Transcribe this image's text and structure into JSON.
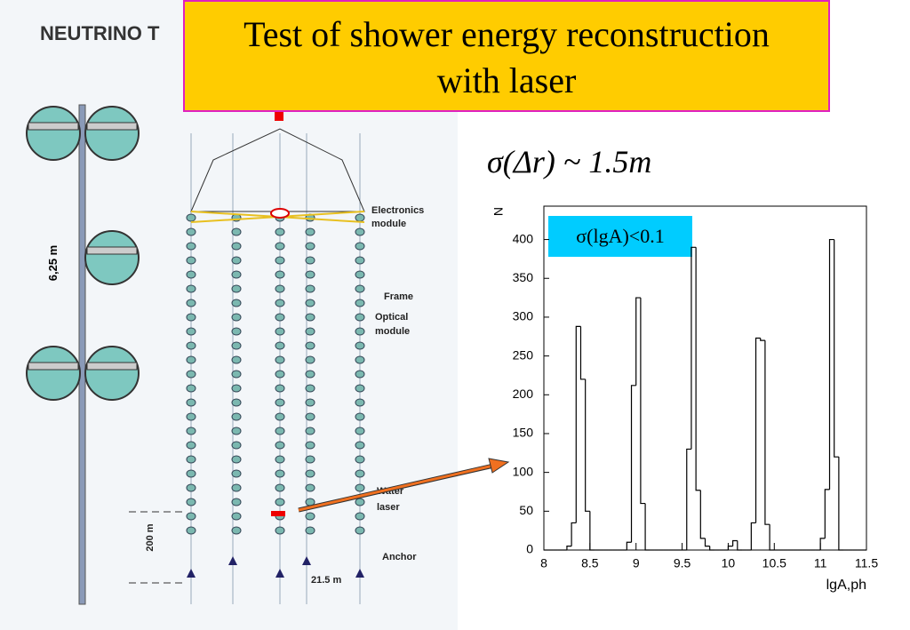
{
  "slide": {
    "title": [
      "Test of shower energy reconstruction",
      "with laser"
    ],
    "formula": "σ(Δr) ~ 1.5m",
    "diagram_labels": {
      "heading": "NEUTRINO T",
      "spacing": "6,25 m",
      "electronics": [
        "Electronics",
        "module"
      ],
      "frame": "Frame",
      "optical": [
        "Optical",
        "module"
      ],
      "laser": [
        "Water",
        "laser"
      ],
      "anchor": "Anchor",
      "depth": "200 m",
      "distance": "21.5 m"
    }
  },
  "chart_data": {
    "type": "histogram",
    "x_label": "lgA,ph",
    "y_label": "N",
    "annotation": "σ(lgA)<0.1",
    "color": "#000000",
    "bins": [
      8,
      8.05,
      8.1,
      8.15,
      8.2,
      8.25,
      8.3,
      8.35,
      8.4,
      8.45,
      8.5,
      8.55,
      8.6,
      8.65,
      8.7,
      8.75,
      8.8,
      8.85,
      8.9,
      8.95,
      9,
      9.05,
      9.1,
      9.15,
      9.2,
      9.25,
      9.3,
      9.35,
      9.4,
      9.45,
      9.5,
      9.55,
      9.6,
      9.65,
      9.7,
      9.75,
      9.8,
      9.85,
      9.9,
      9.95,
      10,
      10.05,
      10.1,
      10.15,
      10.2,
      10.25,
      10.3,
      10.35,
      10.4,
      10.45,
      10.5,
      10.55,
      10.6,
      10.65,
      10.7,
      10.75,
      10.8,
      10.85,
      10.9,
      10.95,
      11,
      11.05,
      11.1,
      11.15,
      11.2,
      11.25,
      11.3,
      11.35,
      11.4,
      11.45,
      11.5
    ],
    "values": [
      0,
      0,
      0,
      0,
      0,
      5,
      35,
      288,
      220,
      50,
      0,
      0,
      0,
      0,
      0,
      0,
      0,
      0,
      10,
      212,
      325,
      60,
      0,
      0,
      0,
      0,
      0,
      0,
      0,
      0,
      0,
      130,
      390,
      77,
      15,
      5,
      0,
      0,
      0,
      0,
      5,
      12,
      0,
      0,
      0,
      35,
      273,
      270,
      33,
      0,
      0,
      0,
      0,
      0,
      0,
      0,
      0,
      0,
      0,
      0,
      15,
      78,
      400,
      120,
      0,
      0,
      0,
      0,
      0,
      0
    ],
    "xlim": [
      8,
      11.5
    ],
    "ylim": [
      0,
      443
    ],
    "xticks": [
      8,
      8.5,
      9,
      9.5,
      10,
      10.5,
      11,
      11.5
    ],
    "yticks": [
      0,
      50,
      100,
      150,
      200,
      250,
      300,
      350,
      400
    ]
  }
}
